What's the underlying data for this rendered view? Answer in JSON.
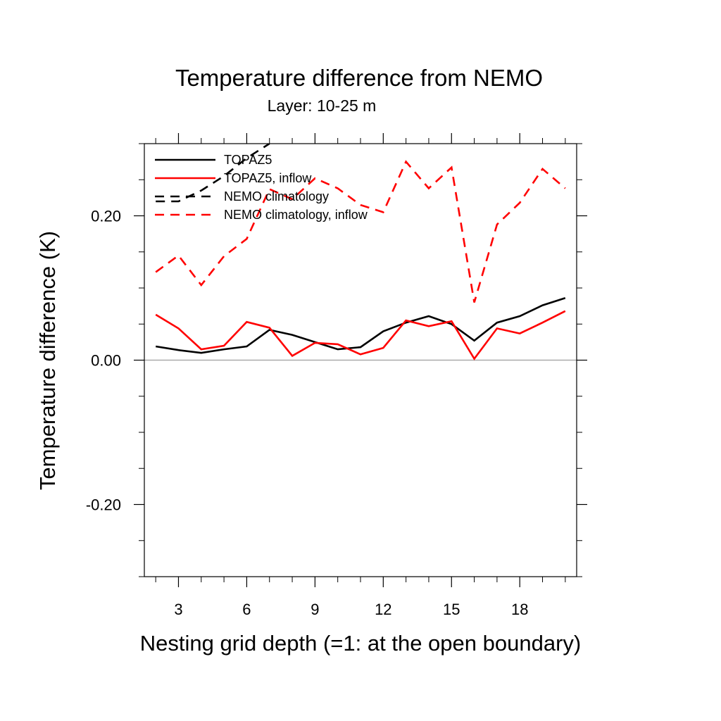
{
  "chart_data": {
    "type": "line",
    "title": "Temperature difference from NEMO",
    "subtitle": "Layer: 10-25 m",
    "xlabel": "Nesting grid depth (=1: at the open boundary)",
    "ylabel": "Temperature difference (K)",
    "xlim": [
      1.5,
      20.5
    ],
    "ylim": [
      -0.3,
      0.3
    ],
    "x_ticks": [
      3,
      6,
      9,
      12,
      15,
      18
    ],
    "x_tick_labels": [
      "3",
      "6",
      "9",
      "12",
      "15",
      "18"
    ],
    "y_ticks": [
      -0.2,
      0.0,
      0.2
    ],
    "y_tick_labels": [
      "-0.20",
      "0.00",
      "0.20"
    ],
    "zero_line": true,
    "grid": false,
    "legend_position": "top-left",
    "x": [
      2,
      3,
      4,
      5,
      6,
      7,
      8,
      9,
      10,
      11,
      12,
      13,
      14,
      15,
      16,
      17,
      18,
      19,
      20
    ],
    "series": [
      {
        "name": "TOPAZ5",
        "color": "#000000",
        "dash": "solid",
        "values": [
          0.019,
          0.014,
          0.01,
          0.015,
          0.019,
          0.042,
          0.035,
          0.025,
          0.015,
          0.018,
          0.04,
          0.052,
          0.061,
          0.05,
          0.027,
          0.052,
          0.061,
          0.076,
          0.086
        ]
      },
      {
        "name": "TOPAZ5, inflow",
        "color": "#ff0000",
        "dash": "solid",
        "values": [
          0.063,
          0.044,
          0.015,
          0.02,
          0.053,
          0.045,
          0.006,
          0.024,
          0.022,
          0.008,
          0.017,
          0.055,
          0.047,
          0.054,
          0.002,
          0.044,
          0.037,
          0.052,
          0.068
        ]
      },
      {
        "name": "NEMO climatology",
        "color": "#000000",
        "dash": "dashed",
        "values": [
          0.22,
          0.22,
          0.235,
          0.255,
          0.28,
          0.3,
          null,
          null,
          null,
          null,
          null,
          null,
          null,
          null,
          null,
          null,
          null,
          null,
          null
        ]
      },
      {
        "name": "NEMO climatology, inflow",
        "color": "#ff0000",
        "dash": "dashed",
        "values": [
          0.122,
          0.145,
          0.104,
          0.144,
          0.168,
          0.237,
          0.223,
          0.252,
          0.238,
          0.215,
          0.205,
          0.275,
          0.238,
          0.267,
          0.08,
          0.188,
          0.218,
          0.265,
          0.238
        ]
      }
    ]
  }
}
